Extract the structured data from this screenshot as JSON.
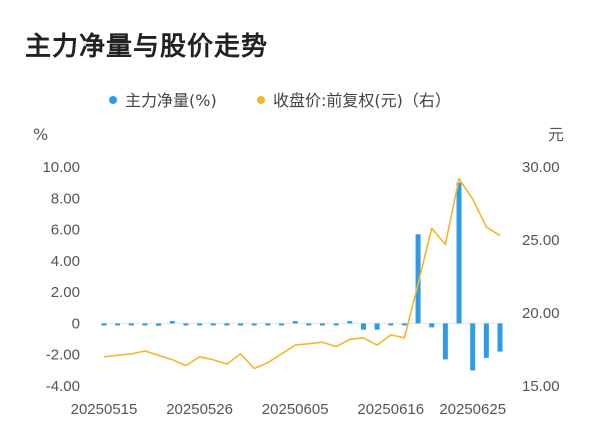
{
  "page": {
    "title": "主力净量与股价走势"
  },
  "chart_data": {
    "type": "bar+line",
    "legend": [
      {
        "label": "主力净量(%)",
        "color": "#2f9ae6",
        "marker": "dot"
      },
      {
        "label": "收盘价:前复权(元)（右）",
        "color": "#f7b52c",
        "marker": "dot"
      }
    ],
    "left_axis": {
      "unit": "%",
      "min": -4,
      "max": 10,
      "ticks": [
        "10.00",
        "8.00",
        "6.00",
        "4.00",
        "2.00",
        "0",
        "-2.00",
        "-4.00"
      ],
      "tick_values": [
        10,
        8,
        6,
        4,
        2,
        0,
        -2,
        -4
      ]
    },
    "right_axis": {
      "unit": "元",
      "min": 15,
      "max": 30,
      "ticks": [
        "30.00",
        "25.00",
        "20.00",
        "15.00"
      ],
      "tick_values": [
        30,
        25,
        20,
        15
      ]
    },
    "x_tick_labels": [
      "20250515",
      "20250526",
      "20250605",
      "20250616",
      "20250625"
    ],
    "x_tick_indices": [
      0,
      7,
      14,
      21,
      27
    ],
    "dates": [
      "20250515",
      "20250516",
      "20250519",
      "20250520",
      "20250521",
      "20250522",
      "20250523",
      "20250526",
      "20250527",
      "20250528",
      "20250529",
      "20250530",
      "20250603",
      "20250604",
      "20250605",
      "20250606",
      "20250609",
      "20250610",
      "20250611",
      "20250612",
      "20250613",
      "20250616",
      "20250617",
      "20250618",
      "20250619",
      "20250620",
      "20250623",
      "20250624",
      "20250625",
      "20250626"
    ],
    "series": [
      {
        "name": "主力净量(%)",
        "type": "bar",
        "axis": "left",
        "color": "#2f9ae6",
        "values": [
          -0.05,
          -0.1,
          -0.05,
          -0.05,
          -0.15,
          0.15,
          -0.05,
          -0.05,
          -0.08,
          -0.05,
          -0.1,
          -0.05,
          -0.05,
          -0.05,
          0.15,
          -0.05,
          -0.1,
          -0.1,
          0.15,
          -0.4,
          -0.4,
          -0.05,
          -0.05,
          5.7,
          -0.25,
          -2.3,
          9.0,
          -3.0,
          -2.2,
          -1.8
        ]
      },
      {
        "name": "收盘价:前复权(元)（右）",
        "type": "line",
        "axis": "right",
        "color": "#f7b52c",
        "values": [
          17.0,
          17.1,
          17.2,
          17.4,
          17.1,
          16.8,
          16.4,
          17.0,
          16.8,
          16.5,
          17.2,
          16.2,
          16.6,
          17.2,
          17.8,
          17.9,
          18.0,
          17.7,
          18.2,
          18.3,
          17.8,
          18.5,
          18.3,
          22.0,
          25.8,
          24.7,
          29.2,
          27.8,
          25.9,
          25.3
        ]
      }
    ]
  }
}
